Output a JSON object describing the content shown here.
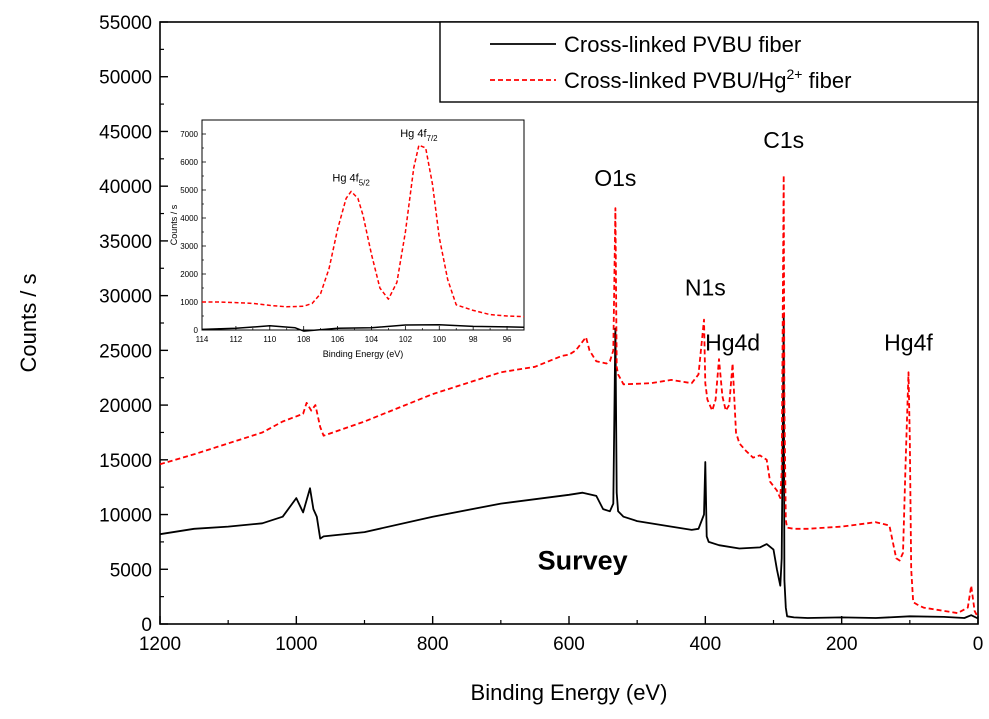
{
  "chart_data": {
    "type": "line",
    "xlabel": "Binding Energy (eV)",
    "ylabel": "Counts / s",
    "xlim": [
      1200,
      0
    ],
    "ylim": [
      0,
      55000
    ],
    "x_ticks": [
      "1200",
      "1000",
      "800",
      "600",
      "400",
      "200",
      "0"
    ],
    "y_ticks": [
      "0",
      "5000",
      "10000",
      "15000",
      "20000",
      "25000",
      "30000",
      "35000",
      "40000",
      "45000",
      "50000",
      "55000"
    ],
    "legend": {
      "placement": "top-right",
      "entries": [
        {
          "label_pre": "Cross-linked PVBU fiber",
          "label_sup": "",
          "label_post": "",
          "style": "solid",
          "color": "#000000"
        },
        {
          "label_pre": "Cross-linked PVBU/Hg",
          "label_sup": "2+",
          "label_post": " fiber",
          "style": "dashed",
          "color": "#ff0000"
        }
      ]
    },
    "annotations": [
      {
        "text": "O1s",
        "x": 532,
        "y": 40000
      },
      {
        "text": "C1s",
        "x": 285,
        "y": 43500
      },
      {
        "text": "N1s",
        "x": 400,
        "y": 30000
      },
      {
        "text": "Hg4d",
        "x": 360,
        "y": 25000
      },
      {
        "text": "Hg4f",
        "x": 102,
        "y": 25000
      },
      {
        "text": "Survey",
        "x": 580,
        "y": 5000
      }
    ],
    "series": [
      {
        "name": "Cross-linked PVBU fiber",
        "color": "#000000",
        "style": "solid",
        "x": [
          1200,
          1150,
          1100,
          1050,
          1020,
          1000,
          990,
          980,
          975,
          970,
          965,
          960,
          900,
          800,
          700,
          600,
          580,
          560,
          550,
          540,
          535,
          532,
          530,
          528,
          520,
          500,
          450,
          420,
          410,
          402,
          400,
          398,
          395,
          380,
          350,
          320,
          310,
          300,
          295,
          290,
          288,
          285,
          284,
          282,
          280,
          270,
          250,
          200,
          150,
          100,
          50,
          20,
          10,
          0
        ],
        "y": [
          8200,
          8700,
          8900,
          9200,
          9800,
          11500,
          10200,
          12400,
          10500,
          9800,
          7800,
          8000,
          8400,
          9800,
          11000,
          11800,
          12000,
          11700,
          10500,
          10300,
          11000,
          27000,
          12000,
          10300,
          9800,
          9400,
          8900,
          8600,
          8700,
          10000,
          14800,
          8000,
          7500,
          7200,
          6900,
          7000,
          7300,
          6800,
          5000,
          3500,
          6000,
          28000,
          4000,
          1500,
          700,
          600,
          550,
          600,
          550,
          700,
          650,
          550,
          800,
          500
        ]
      },
      {
        "name": "Cross-linked PVBU/Hg2+ fiber",
        "color": "#ff0000",
        "style": "dashed",
        "x": [
          1200,
          1150,
          1100,
          1050,
          1020,
          990,
          985,
          978,
          972,
          965,
          960,
          900,
          800,
          700,
          650,
          610,
          600,
          590,
          580,
          575,
          570,
          560,
          545,
          540,
          535,
          532,
          530,
          528,
          520,
          480,
          450,
          420,
          410,
          402,
          400,
          397,
          390,
          385,
          380,
          375,
          370,
          365,
          360,
          355,
          350,
          340,
          330,
          320,
          310,
          305,
          300,
          295,
          290,
          288,
          285,
          284,
          282,
          280,
          270,
          250,
          200,
          150,
          130,
          120,
          115,
          110,
          106,
          102,
          100,
          98,
          95,
          90,
          80,
          60,
          30,
          15,
          10,
          5,
          0
        ],
        "y": [
          14600,
          15500,
          16500,
          17500,
          18500,
          19200,
          20200,
          19500,
          20000,
          18000,
          17200,
          18500,
          21000,
          23000,
          23500,
          24500,
          24600,
          25000,
          25800,
          26200,
          25000,
          24000,
          23800,
          24000,
          25000,
          38000,
          23500,
          22800,
          21900,
          22000,
          22300,
          22000,
          22800,
          27800,
          22000,
          20500,
          19500,
          20500,
          24200,
          20800,
          19500,
          20000,
          23800,
          17500,
          16500,
          15800,
          15200,
          15400,
          15000,
          13000,
          12600,
          12200,
          11500,
          14000,
          41000,
          20000,
          9500,
          8800,
          8700,
          8700,
          8900,
          9300,
          9000,
          6000,
          5800,
          6500,
          15000,
          23000,
          17000,
          5000,
          2000,
          1800,
          1500,
          1300,
          1000,
          1500,
          3500,
          1200,
          600
        ]
      }
    ],
    "inset": {
      "type": "line",
      "xlabel": "Binding Energy (eV)",
      "ylabel": "Counts / s",
      "xlim": [
        114,
        95
      ],
      "ylim": [
        0,
        7500
      ],
      "x_ticks": [
        "114",
        "112",
        "110",
        "108",
        "106",
        "104",
        "102",
        "100",
        "98",
        "96"
      ],
      "y_ticks": [
        "0",
        "1000",
        "2000",
        "3000",
        "4000",
        "5000",
        "6000",
        "7000"
      ],
      "annotations": [
        {
          "main": "Hg 4f",
          "sub": "5/2",
          "x": 105.2,
          "y": 5300
        },
        {
          "main": "Hg 4f",
          "sub": "7/2",
          "x": 101.2,
          "y": 6900
        }
      ],
      "series": [
        {
          "name": "Cross-linked PVBU fiber",
          "color": "#000000",
          "style": "solid",
          "x": [
            114,
            112,
            110,
            108.5,
            108,
            106,
            104,
            102,
            100,
            98,
            96,
            95
          ],
          "y": [
            20,
            60,
            150,
            80,
            -40,
            60,
            80,
            180,
            190,
            130,
            110,
            100
          ]
        },
        {
          "name": "Cross-linked PVBU/Hg2+ fiber",
          "color": "#ff0000",
          "style": "dashed",
          "x": [
            114,
            113,
            112,
            111,
            110,
            109,
            108,
            107.5,
            107,
            106.5,
            106,
            105.5,
            105.2,
            104.8,
            104.5,
            104,
            103.5,
            103,
            102.5,
            102,
            101.5,
            101.2,
            100.8,
            100.4,
            100,
            99.5,
            99,
            98,
            97,
            96,
            95
          ],
          "y": [
            1000,
            1000,
            980,
            950,
            880,
            830,
            850,
            950,
            1300,
            2200,
            3600,
            4700,
            4950,
            4700,
            4100,
            2700,
            1500,
            1100,
            1700,
            3500,
            5800,
            6600,
            6500,
            5200,
            3300,
            1800,
            900,
            700,
            550,
            500,
            480
          ]
        }
      ]
    }
  }
}
